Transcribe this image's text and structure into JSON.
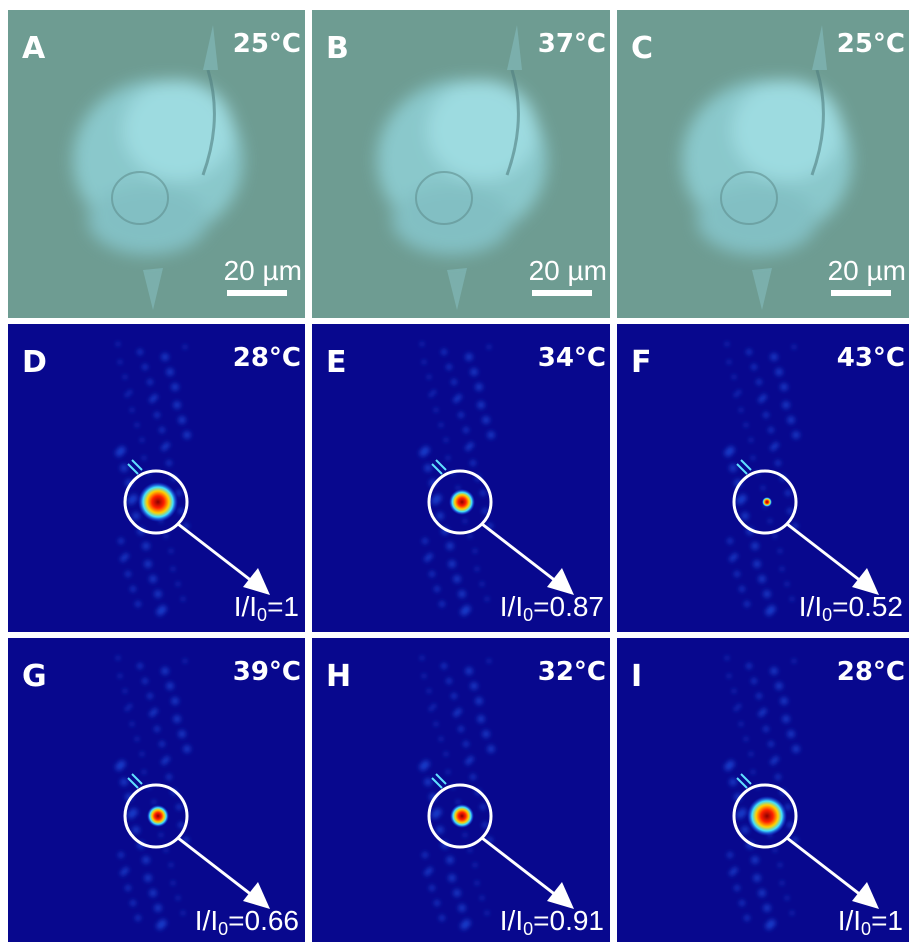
{
  "panels": [
    {
      "label": "A",
      "temperature": "25°C",
      "scale_bar": "20 µm"
    },
    {
      "label": "B",
      "temperature": "37°C",
      "scale_bar": "20 µm"
    },
    {
      "label": "C",
      "temperature": "25°C",
      "scale_bar": "20 µm"
    },
    {
      "label": "D",
      "temperature": "28°C",
      "ratio": {
        "text": "I/I",
        "subscript": "0",
        "value": "=1"
      }
    },
    {
      "label": "E",
      "temperature": "34°C",
      "ratio": {
        "text": "I/I",
        "subscript": "0",
        "value": "=0.87"
      }
    },
    {
      "label": "F",
      "temperature": "43°C",
      "ratio": {
        "text": "I/I",
        "subscript": "0",
        "value": "=0.52"
      }
    },
    {
      "label": "G",
      "temperature": "39°C",
      "ratio": {
        "text": "I/I",
        "subscript": "0",
        "value": "=0.66"
      }
    },
    {
      "label": "H",
      "temperature": "32°C",
      "ratio": {
        "text": "I/I",
        "subscript": "0",
        "value": "=0.91"
      }
    },
    {
      "label": "I",
      "temperature": "28°C",
      "ratio": {
        "text": "I/I",
        "subscript": "0",
        "value": "=1"
      }
    }
  ]
}
